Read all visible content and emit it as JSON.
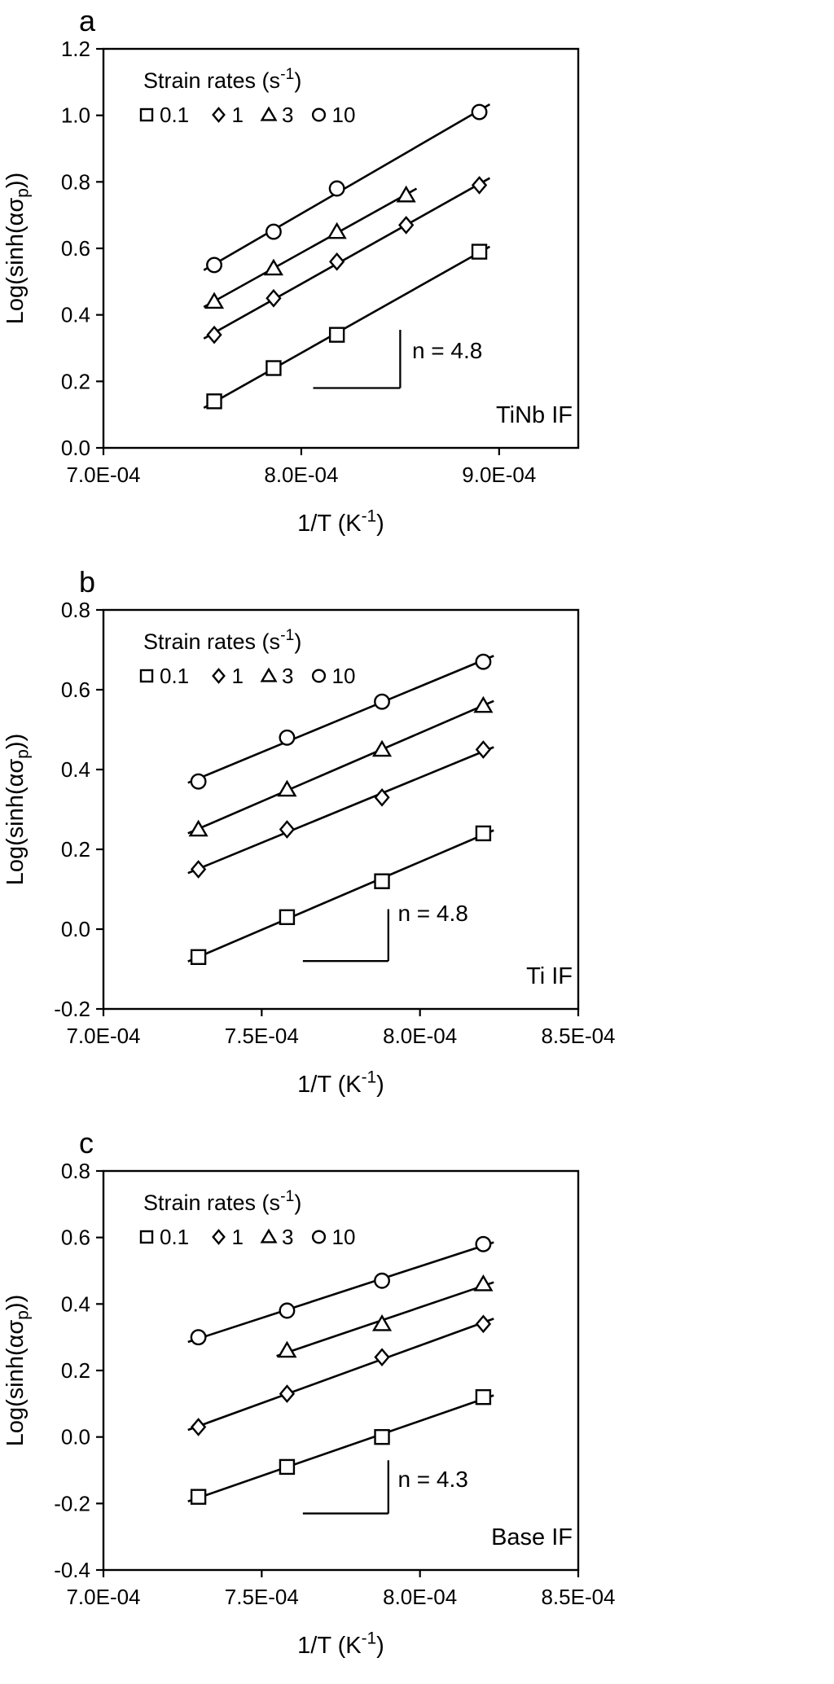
{
  "figure": {
    "background": "#ffffff",
    "ink": "#000000",
    "marker_fill": "#ffffff",
    "legend_title_parts": [
      {
        "t": "Strain rates (s"
      },
      {
        "t": "-1",
        "sup": true
      },
      {
        "t": ")"
      }
    ],
    "x_axis_title_parts": [
      {
        "t": "1/T (K"
      },
      {
        "t": "-1",
        "sup": true
      },
      {
        "t": ")"
      }
    ],
    "y_axis_title_parts": [
      {
        "t": "Log(sinh(ασ"
      },
      {
        "t": "p",
        "sub": true
      },
      {
        "t": "))"
      }
    ]
  },
  "chart_data": [
    {
      "id": "a",
      "type": "scatter",
      "panel_label": "a",
      "dataset_label": "TiNb IF",
      "xlim": [
        0.0007,
        0.00094
      ],
      "ylim": [
        0.0,
        1.2
      ],
      "grid": false,
      "legend_position": "top-left-inside",
      "x_ticks": [
        {
          "v": 0.0007,
          "label": "7.0E-04"
        },
        {
          "v": 0.0008,
          "label": "8.0E-04"
        },
        {
          "v": 0.0009,
          "label": "9.0E-04"
        }
      ],
      "y_ticks": [
        {
          "v": 0.0,
          "label": "0.0"
        },
        {
          "v": 0.2,
          "label": "0.2"
        },
        {
          "v": 0.4,
          "label": "0.4"
        },
        {
          "v": 0.6,
          "label": "0.6"
        },
        {
          "v": 0.8,
          "label": "0.8"
        },
        {
          "v": 1.0,
          "label": "1.0"
        },
        {
          "v": 1.2,
          "label": "1.2"
        }
      ],
      "legend_items": [
        {
          "marker": "square",
          "label": "0.1"
        },
        {
          "marker": "diamond",
          "label": "1"
        },
        {
          "marker": "triangle",
          "label": "3"
        },
        {
          "marker": "circle",
          "label": "10"
        }
      ],
      "annotation": {
        "label": "n = 4.8",
        "x1": 0.000806,
        "x2": 0.00085,
        "y1": 0.18,
        "y2": 0.355,
        "tx": 0.000856,
        "ty": 0.27
      },
      "series": [
        {
          "name": "0.1",
          "marker": "square",
          "x": [
            0.000756,
            0.000786,
            0.000818,
            0.00089
          ],
          "y": [
            0.14,
            0.24,
            0.34,
            0.59
          ]
        },
        {
          "name": "1",
          "marker": "diamond",
          "x": [
            0.000756,
            0.000786,
            0.000818,
            0.000853,
            0.00089
          ],
          "y": [
            0.34,
            0.45,
            0.56,
            0.67,
            0.79
          ]
        },
        {
          "name": "3",
          "marker": "triangle",
          "x": [
            0.000756,
            0.000786,
            0.000818,
            0.000853
          ],
          "y": [
            0.44,
            0.54,
            0.65,
            0.76
          ]
        },
        {
          "name": "10",
          "marker": "circle",
          "x": [
            0.000756,
            0.000786,
            0.000818,
            0.00089
          ],
          "y": [
            0.55,
            0.65,
            0.78,
            1.01
          ]
        }
      ]
    },
    {
      "id": "b",
      "type": "scatter",
      "panel_label": "b",
      "dataset_label": "Ti IF",
      "xlim": [
        0.0007,
        0.00085
      ],
      "ylim": [
        -0.2,
        0.8
      ],
      "grid": false,
      "legend_position": "top-left-inside",
      "x_ticks": [
        {
          "v": 0.0007,
          "label": "7.0E-04"
        },
        {
          "v": 0.00075,
          "label": "7.5E-04"
        },
        {
          "v": 0.0008,
          "label": "8.0E-04"
        },
        {
          "v": 0.00085,
          "label": "8.5E-04"
        }
      ],
      "y_ticks": [
        {
          "v": -0.2,
          "label": "-0.2"
        },
        {
          "v": 0.0,
          "label": "0.0"
        },
        {
          "v": 0.2,
          "label": "0.2"
        },
        {
          "v": 0.4,
          "label": "0.4"
        },
        {
          "v": 0.6,
          "label": "0.6"
        },
        {
          "v": 0.8,
          "label": "0.8"
        }
      ],
      "legend_items": [
        {
          "marker": "square",
          "label": "0.1"
        },
        {
          "marker": "diamond",
          "label": "1"
        },
        {
          "marker": "triangle",
          "label": "3"
        },
        {
          "marker": "circle",
          "label": "10"
        }
      ],
      "annotation": {
        "label": "n = 4.8",
        "x1": 0.000763,
        "x2": 0.00079,
        "y1": -0.08,
        "y2": 0.05,
        "tx": 0.000793,
        "ty": 0.02
      },
      "series": [
        {
          "name": "0.1",
          "marker": "square",
          "x": [
            0.00073,
            0.000758,
            0.000788,
            0.00082
          ],
          "y": [
            -0.07,
            0.03,
            0.12,
            0.24
          ]
        },
        {
          "name": "1",
          "marker": "diamond",
          "x": [
            0.00073,
            0.000758,
            0.000788,
            0.00082
          ],
          "y": [
            0.15,
            0.25,
            0.33,
            0.45
          ]
        },
        {
          "name": "3",
          "marker": "triangle",
          "x": [
            0.00073,
            0.000758,
            0.000788,
            0.00082
          ],
          "y": [
            0.25,
            0.35,
            0.45,
            0.56
          ]
        },
        {
          "name": "10",
          "marker": "circle",
          "x": [
            0.00073,
            0.000758,
            0.000788,
            0.00082
          ],
          "y": [
            0.37,
            0.48,
            0.57,
            0.67
          ]
        }
      ]
    },
    {
      "id": "c",
      "type": "scatter",
      "panel_label": "c",
      "dataset_label": "Base IF",
      "xlim": [
        0.0007,
        0.00085
      ],
      "ylim": [
        -0.4,
        0.8
      ],
      "grid": false,
      "legend_position": "top-left-inside",
      "x_ticks": [
        {
          "v": 0.0007,
          "label": "7.0E-04"
        },
        {
          "v": 0.00075,
          "label": "7.5E-04"
        },
        {
          "v": 0.0008,
          "label": "8.0E-04"
        },
        {
          "v": 0.00085,
          "label": "8.5E-04"
        }
      ],
      "y_ticks": [
        {
          "v": -0.4,
          "label": "-0.4"
        },
        {
          "v": -0.2,
          "label": "-0.2"
        },
        {
          "v": 0.0,
          "label": "0.0"
        },
        {
          "v": 0.2,
          "label": "0.2"
        },
        {
          "v": 0.4,
          "label": "0.4"
        },
        {
          "v": 0.6,
          "label": "0.6"
        },
        {
          "v": 0.8,
          "label": "0.8"
        }
      ],
      "legend_items": [
        {
          "marker": "square",
          "label": "0.1"
        },
        {
          "marker": "diamond",
          "label": "1"
        },
        {
          "marker": "triangle",
          "label": "3"
        },
        {
          "marker": "circle",
          "label": "10"
        }
      ],
      "annotation": {
        "label": "n = 4.3",
        "x1": 0.000763,
        "x2": 0.00079,
        "y1": -0.23,
        "y2": -0.07,
        "tx": 0.000793,
        "ty": -0.15
      },
      "series": [
        {
          "name": "0.1",
          "marker": "square",
          "x": [
            0.00073,
            0.000758,
            0.000788,
            0.00082
          ],
          "y": [
            -0.18,
            -0.09,
            0.0,
            0.12
          ]
        },
        {
          "name": "1",
          "marker": "diamond",
          "x": [
            0.00073,
            0.000758,
            0.000788,
            0.00082
          ],
          "y": [
            0.03,
            0.13,
            0.24,
            0.34
          ]
        },
        {
          "name": "3",
          "marker": "triangle",
          "x": [
            0.000758,
            0.000788,
            0.00082
          ],
          "y": [
            0.26,
            0.34,
            0.46
          ]
        },
        {
          "name": "10",
          "marker": "circle",
          "x": [
            0.00073,
            0.000758,
            0.000788,
            0.00082
          ],
          "y": [
            0.3,
            0.38,
            0.47,
            0.58
          ]
        }
      ]
    }
  ]
}
